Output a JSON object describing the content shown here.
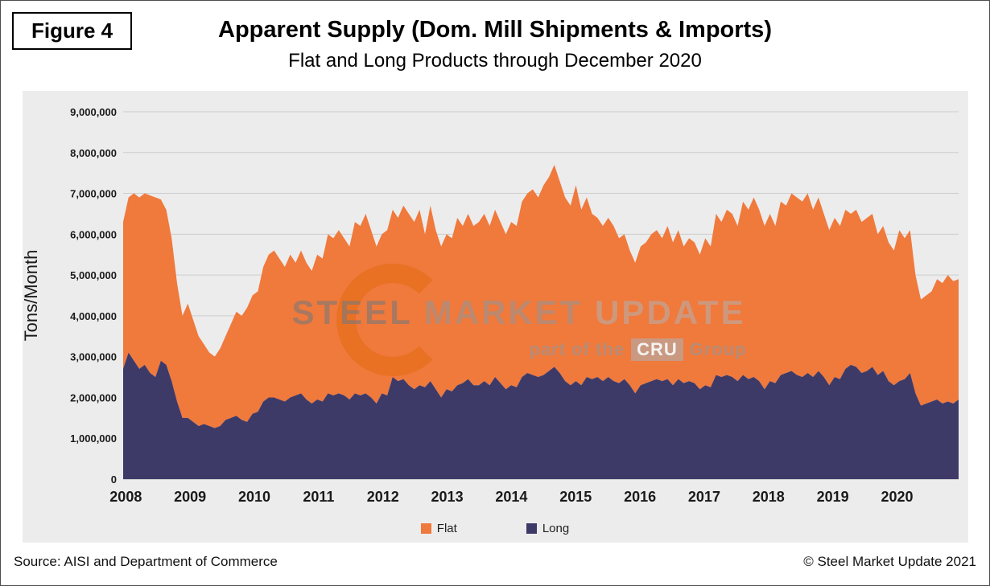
{
  "figure": {
    "label": "Figure 4"
  },
  "watermark": {
    "brand_strong": "STEEL",
    "brand_mid": "MARKET",
    "brand_light": "UPDATE",
    "tagline_prefix": "part of the",
    "tagline_box": "CRU",
    "tagline_suffix": "Group"
  },
  "footer": {
    "source": "Source: AISI and Department of Commerce",
    "copyright": "© Steel Market Update 2021"
  },
  "colors": {
    "flat": "#F0793C",
    "long": "#3E3A68",
    "watermark_orange": "#E8701F",
    "grid": "#cdcdcd",
    "axis": "#b0b0b0",
    "chart_background": "#ececec"
  },
  "chart_data": {
    "type": "area",
    "stacked": true,
    "title": "Apparent Supply (Dom. Mill Shipments & Imports)",
    "subtitle": "Flat and Long Products through December 2020",
    "ylabel": "Tons/Month",
    "xlabel": "",
    "units": "tons/month",
    "values_scale": 1000000,
    "ylim": [
      0,
      9000000
    ],
    "ytick_interval": 1000000,
    "ytick_labels": [
      "0",
      "1,000,000",
      "2,000,000",
      "3,000,000",
      "4,000,000",
      "5,000,000",
      "6,000,000",
      "7,000,000",
      "8,000,000",
      "9,000,000"
    ],
    "frequency": "monthly",
    "x_start": "2008-01",
    "x_end": "2020-12",
    "x_years": [
      2008,
      2009,
      2010,
      2011,
      2012,
      2013,
      2014,
      2015,
      2016,
      2017,
      2018,
      2019,
      2020
    ],
    "grid": true,
    "legend_position": "bottom",
    "legend": [
      {
        "label": "Flat",
        "color": "#F0793C"
      },
      {
        "label": "Long",
        "color": "#3E3A68"
      }
    ],
    "series": [
      {
        "name": "Long",
        "color": "#3E3A68",
        "values_millions": [
          2.7,
          3.1,
          2.9,
          2.7,
          2.8,
          2.6,
          2.5,
          2.9,
          2.8,
          2.4,
          1.9,
          1.5,
          1.5,
          1.4,
          1.3,
          1.35,
          1.3,
          1.25,
          1.3,
          1.45,
          1.5,
          1.55,
          1.45,
          1.4,
          1.6,
          1.65,
          1.9,
          2.0,
          2.0,
          1.95,
          1.9,
          2.0,
          2.05,
          2.1,
          1.95,
          1.85,
          1.95,
          1.9,
          2.1,
          2.05,
          2.1,
          2.05,
          1.95,
          2.1,
          2.05,
          2.1,
          2.0,
          1.85,
          2.1,
          2.05,
          2.5,
          2.4,
          2.45,
          2.3,
          2.2,
          2.3,
          2.25,
          2.4,
          2.2,
          2.0,
          2.2,
          2.15,
          2.3,
          2.35,
          2.45,
          2.3,
          2.3,
          2.4,
          2.3,
          2.5,
          2.35,
          2.2,
          2.3,
          2.25,
          2.5,
          2.6,
          2.55,
          2.5,
          2.55,
          2.65,
          2.75,
          2.6,
          2.4,
          2.3,
          2.4,
          2.3,
          2.5,
          2.45,
          2.5,
          2.4,
          2.5,
          2.4,
          2.35,
          2.45,
          2.3,
          2.1,
          2.3,
          2.35,
          2.4,
          2.45,
          2.4,
          2.45,
          2.3,
          2.45,
          2.35,
          2.4,
          2.35,
          2.2,
          2.3,
          2.25,
          2.55,
          2.5,
          2.55,
          2.5,
          2.4,
          2.55,
          2.45,
          2.5,
          2.4,
          2.2,
          2.4,
          2.35,
          2.55,
          2.6,
          2.65,
          2.55,
          2.5,
          2.6,
          2.5,
          2.65,
          2.5,
          2.3,
          2.5,
          2.45,
          2.7,
          2.8,
          2.75,
          2.6,
          2.65,
          2.75,
          2.55,
          2.65,
          2.4,
          2.3,
          2.4,
          2.45,
          2.6,
          2.1,
          1.8,
          1.85,
          1.9,
          1.95,
          1.85,
          1.9,
          1.85,
          1.95
        ]
      },
      {
        "name": "Flat",
        "color": "#F0793C",
        "values_millions": [
          3.6,
          3.8,
          4.1,
          4.2,
          4.2,
          4.35,
          4.4,
          3.95,
          3.8,
          3.5,
          2.9,
          2.5,
          2.8,
          2.5,
          2.2,
          1.95,
          1.8,
          1.75,
          1.9,
          2.05,
          2.3,
          2.55,
          2.55,
          2.8,
          2.9,
          2.95,
          3.3,
          3.5,
          3.6,
          3.45,
          3.3,
          3.5,
          3.25,
          3.5,
          3.35,
          3.25,
          3.55,
          3.5,
          3.9,
          3.85,
          4.0,
          3.85,
          3.75,
          4.2,
          4.15,
          4.4,
          4.1,
          3.85,
          3.9,
          4.05,
          4.1,
          4.0,
          4.25,
          4.2,
          4.1,
          4.3,
          3.75,
          4.3,
          3.9,
          3.7,
          3.8,
          3.75,
          4.1,
          3.85,
          4.05,
          3.9,
          4.0,
          4.1,
          3.9,
          4.1,
          3.95,
          3.8,
          4.0,
          3.95,
          4.3,
          4.4,
          4.55,
          4.4,
          4.65,
          4.75,
          4.95,
          4.7,
          4.5,
          4.4,
          4.8,
          4.3,
          4.4,
          4.05,
          3.9,
          3.8,
          3.9,
          3.8,
          3.55,
          3.55,
          3.3,
          3.2,
          3.4,
          3.45,
          3.6,
          3.65,
          3.5,
          3.75,
          3.5,
          3.65,
          3.35,
          3.5,
          3.45,
          3.3,
          3.6,
          3.45,
          3.95,
          3.8,
          4.05,
          4.0,
          3.8,
          4.25,
          4.15,
          4.4,
          4.2,
          4.0,
          4.1,
          3.85,
          4.25,
          4.1,
          4.35,
          4.35,
          4.3,
          4.4,
          4.1,
          4.25,
          4.0,
          3.8,
          3.9,
          3.75,
          3.9,
          3.7,
          3.85,
          3.7,
          3.75,
          3.75,
          3.45,
          3.55,
          3.4,
          3.3,
          3.7,
          3.45,
          3.5,
          2.9,
          2.6,
          2.65,
          2.7,
          2.95,
          2.95,
          3.1,
          3.0,
          2.95
        ]
      }
    ]
  }
}
